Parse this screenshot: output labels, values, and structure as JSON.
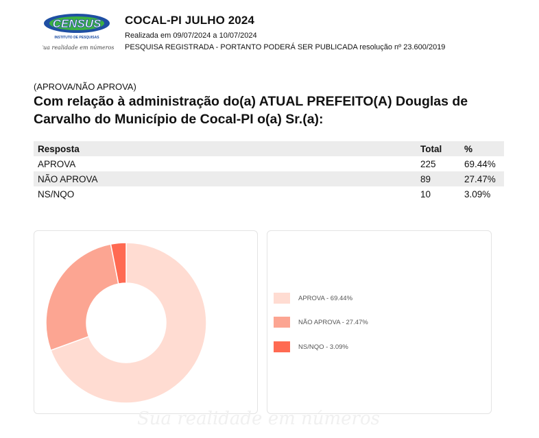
{
  "header": {
    "title": "COCAL-PI JULHO 2024",
    "date_line": "Realizada em 09/07/2024 a 10/07/2024",
    "registration_line": "PESQUISA REGISTRADA - PORTANTO PODERÁ SER PUBLICADA resolução nº 23.600/2019"
  },
  "logo": {
    "brand": "CENSUS",
    "subtitle": "INSTITUTO DE PESQUISAS",
    "tagline": "Sua realidade em números"
  },
  "question": {
    "tag": "(APROVA/NÃO APROVA)",
    "text": "Com relação à administração do(a) ATUAL PREFEITO(A) Douglas de Carvalho do Município de Cocal-PI o(a) Sr.(a):"
  },
  "table": {
    "headers": {
      "resposta": "Resposta",
      "total": "Total",
      "pct": "%"
    },
    "rows": [
      {
        "resposta": "APROVA",
        "total": "225",
        "pct": "69.44%"
      },
      {
        "resposta": "NÃO APROVA",
        "total": "89",
        "pct": "27.47%"
      },
      {
        "resposta": "NS/NQO",
        "total": "10",
        "pct": "3.09%"
      }
    ]
  },
  "chart_data": {
    "type": "pie",
    "donut": true,
    "categories": [
      "APROVA",
      "NÃO APROVA",
      "NS/NQO"
    ],
    "values": [
      69.44,
      27.47,
      3.09
    ],
    "colors": [
      "#ffdcd2",
      "#fca592",
      "#ff6a52"
    ],
    "legend_labels": [
      "APROVA - 69.44%",
      "NÃO APROVA - 27.47%",
      "NS/NQO - 3.09%"
    ],
    "legend_position": "right"
  },
  "watermark": "Sua realidade em números",
  "colors": {
    "logo_blue": "#1f4fa3",
    "logo_green": "#3cb043",
    "table_shade": "#ececec"
  }
}
